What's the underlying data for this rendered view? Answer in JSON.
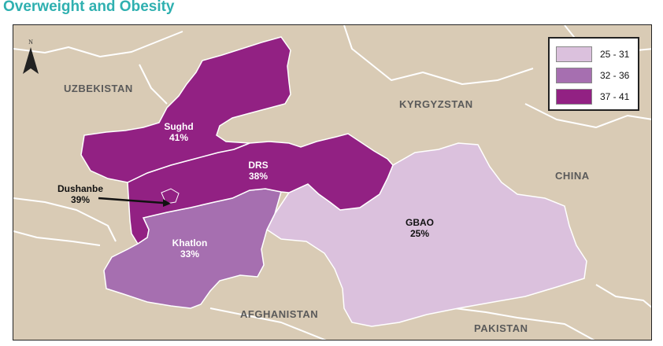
{
  "title": "Overweight and Obesity",
  "north_label": "N",
  "countries": {
    "uzbekistan": "UZBEKISTAN",
    "kyrgyzstan": "KYRGYZSTAN",
    "china": "CHINA",
    "afghanistan": "AFGHANISTAN",
    "pakistan": "PAKISTAN"
  },
  "regions": [
    {
      "name": "Sughd",
      "value": "41%",
      "category": "37 - 41"
    },
    {
      "name": "DRS",
      "value": "38%",
      "category": "37 - 41"
    },
    {
      "name": "Dushanbe",
      "value": "39%",
      "category": "37 - 41"
    },
    {
      "name": "Khatlon",
      "value": "33%",
      "category": "32 - 36"
    },
    {
      "name": "GBAO",
      "value": "25%",
      "category": "25 - 31"
    }
  ],
  "legend": [
    {
      "label": "25 - 31",
      "color": "#dbc1dd"
    },
    {
      "label": "32 - 36",
      "color": "#a66fb0"
    },
    {
      "label": "37 - 41",
      "color": "#922183"
    }
  ],
  "colors": {
    "background": "#d9cbb5",
    "high": "#922183",
    "mid": "#a66fb0",
    "low": "#dbc1dd",
    "title": "#2fb0b0"
  }
}
